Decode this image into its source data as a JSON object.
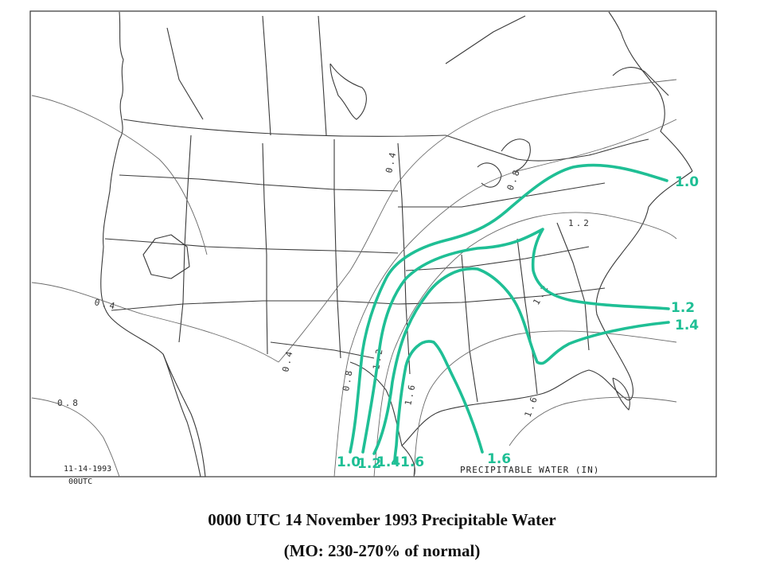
{
  "map": {
    "date_stamp": "11-14-1993",
    "time_stamp": "00UTC",
    "legend_title": "PRECIPITABLE WATER (IN)",
    "isoline_labels": [
      {
        "text": "0.4"
      },
      {
        "text": "0.8"
      },
      {
        "text": "1.2"
      },
      {
        "text": "0.4"
      },
      {
        "text": "0.4"
      },
      {
        "text": "0.8"
      },
      {
        "text": "0.8"
      },
      {
        "text": "1.2"
      },
      {
        "text": "1.6"
      },
      {
        "text": "1.6"
      },
      {
        "text": "1.2"
      }
    ],
    "handdrawn_labels": [
      {
        "text": "1.0"
      },
      {
        "text": "1.2"
      },
      {
        "text": "1.4"
      },
      {
        "text": "1.0"
      },
      {
        "text": "1.2"
      },
      {
        "text": "1.4"
      },
      {
        "text": "1.6"
      },
      {
        "text": "1.6"
      }
    ],
    "highlight_color": "#1fbf95"
  },
  "caption": {
    "line1": "0000 UTC 14 November 1993 Precipitable Water",
    "line2": "(MO: 230-270% of normal)"
  }
}
